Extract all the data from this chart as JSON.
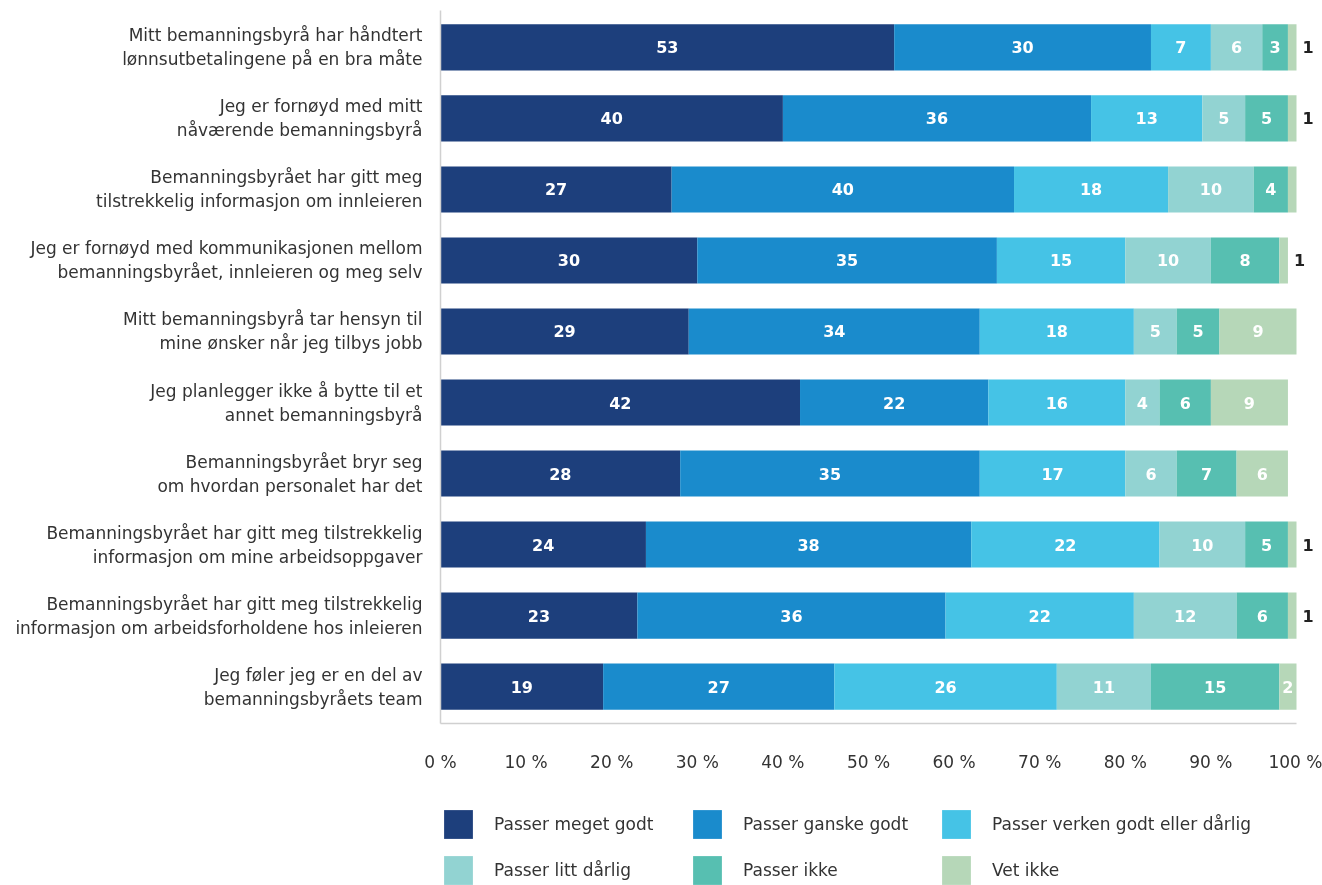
{
  "chart_data": {
    "type": "bar",
    "orientation": "horizontal",
    "stacked": true,
    "categories": [
      "Mitt bemanningsbyrå har håndtert\nlønnsutbetalingene på en bra måte",
      "Jeg er fornøyd med mitt\nnåværende bemanningsbyrå",
      "Bemanningsbyrået har gitt meg\ntilstrekkelig informasjon om innleieren",
      "Jeg er fornøyd med kommunikasjonen mellom\nbemanningsbyrået, innleieren og meg selv",
      "Mitt bemanningsbyrå tar hensyn til\nmine ønsker når jeg tilbys jobb",
      "Jeg planlegger ikke å bytte til et\nannet bemanningsbyrå",
      "Bemanningsbyrået bryr seg\nom hvordan personalet har det",
      "Bemanningsbyrået har gitt meg tilstrekkelig\ninformasjon om mine arbeidsoppgaver",
      "Bemanningsbyrået har gitt meg tilstrekkelig\ninformasjon om arbeidsforholdene hos inleieren",
      "Jeg føler jeg er en del av\nbemanningsbyråets team"
    ],
    "series": [
      {
        "name": "Passer meget godt",
        "color": "#1d3f7c",
        "values": [
          53,
          40,
          27,
          30,
          29,
          42,
          28,
          24,
          23,
          19
        ],
        "value_labels": [
          "53",
          "40",
          "27",
          "30",
          "29",
          "42",
          "28",
          "24",
          "23",
          "19"
        ]
      },
      {
        "name": "Passer ganske godt",
        "color": "#1a8bcc",
        "values": [
          30,
          36,
          40,
          35,
          34,
          22,
          35,
          38,
          36,
          27
        ],
        "value_labels": [
          "30",
          "36",
          "40",
          "35",
          "34",
          "22",
          "35",
          "38",
          "36",
          "27"
        ]
      },
      {
        "name": "Passer verken godt eller dårlig",
        "color": "#45c3e6",
        "values": [
          7,
          13,
          18,
          15,
          18,
          16,
          17,
          22,
          22,
          26
        ],
        "value_labels": [
          "7",
          "13",
          "18",
          "15",
          "18",
          "16",
          "17",
          "22",
          "22",
          "26"
        ]
      },
      {
        "name": "Passer litt dårlig",
        "color": "#92d3d2",
        "values": [
          6,
          5,
          10,
          10,
          5,
          4,
          6,
          10,
          12,
          11
        ],
        "value_labels": [
          "6",
          "5",
          "10",
          "10",
          "5",
          "4",
          "6",
          "10",
          "12",
          "11"
        ]
      },
      {
        "name": "Passer ikke",
        "color": "#57bfb1",
        "values": [
          3,
          5,
          4,
          8,
          5,
          6,
          7,
          5,
          6,
          15
        ],
        "value_labels": [
          "3",
          "5",
          "4",
          "8",
          "5",
          "6",
          "7",
          "5",
          "6",
          "15"
        ]
      },
      {
        "name": "Vet ikke",
        "color": "#b6d7b8",
        "values": [
          1,
          1,
          1,
          1,
          9,
          9,
          6,
          1,
          1,
          2
        ],
        "value_labels": [
          "1",
          "1",
          null,
          "1",
          "9",
          "9",
          "6",
          "1",
          "1",
          "2"
        ]
      }
    ],
    "xlim": [
      0,
      100
    ],
    "xticks": [
      {
        "value": 0,
        "label": "0 %"
      },
      {
        "value": 10,
        "label": "10 %"
      },
      {
        "value": 20,
        "label": "20 %"
      },
      {
        "value": 30,
        "label": "30 %"
      },
      {
        "value": 40,
        "label": "40 %"
      },
      {
        "value": 50,
        "label": "50 %"
      },
      {
        "value": 60,
        "label": "60 %"
      },
      {
        "value": 70,
        "label": "70 %"
      },
      {
        "value": 80,
        "label": "80 %"
      },
      {
        "value": 90,
        "label": "90 %"
      },
      {
        "value": 100,
        "label": "100 %"
      }
    ],
    "grid": false,
    "legend": "bottom"
  }
}
